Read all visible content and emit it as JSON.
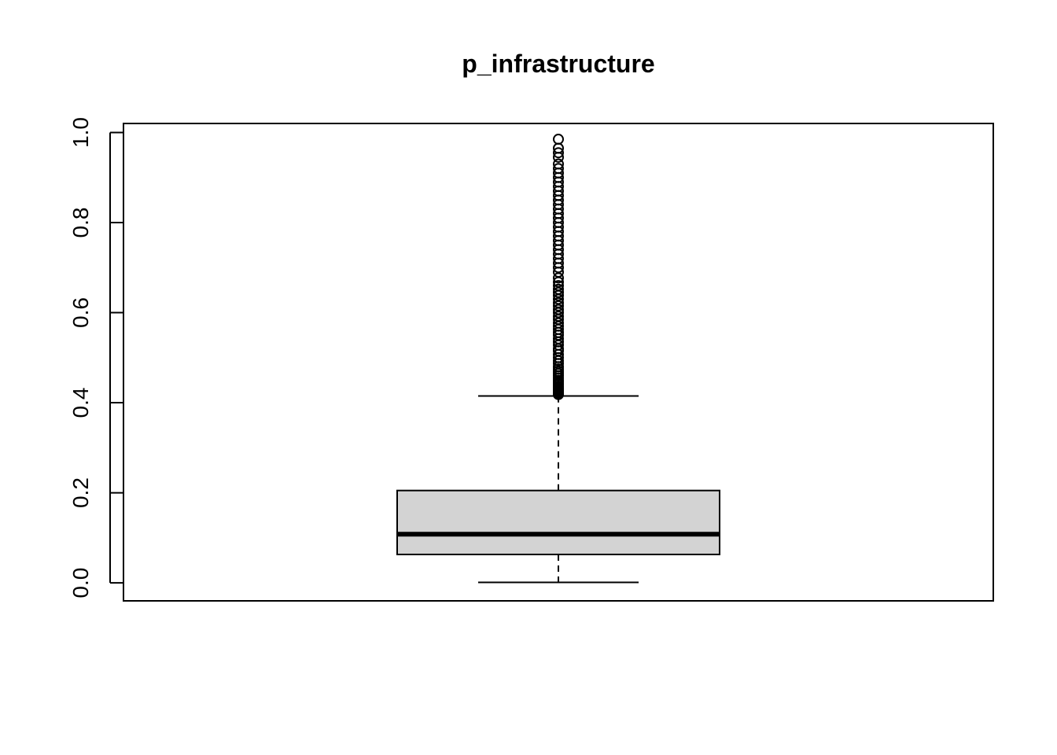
{
  "chart_data": {
    "type": "box",
    "title": "p_infrastructure",
    "xlabel": "",
    "ylabel": "",
    "ylim": [
      -0.04,
      1.02
    ],
    "yticks": [
      0.0,
      0.2,
      0.4,
      0.6,
      0.8,
      1.0
    ],
    "ytick_labels": [
      "0.0",
      "0.2",
      "0.4",
      "0.6",
      "0.8",
      "1.0"
    ],
    "grid": false,
    "box": {
      "whisker_low": 0.001,
      "q1": 0.063,
      "median": 0.108,
      "q3": 0.205,
      "whisker_high": 0.415
    },
    "outliers": [
      0.418,
      0.42,
      0.422,
      0.425,
      0.428,
      0.43,
      0.433,
      0.436,
      0.44,
      0.443,
      0.447,
      0.45,
      0.455,
      0.46,
      0.465,
      0.47,
      0.475,
      0.48,
      0.487,
      0.493,
      0.5,
      0.507,
      0.515,
      0.52,
      0.528,
      0.535,
      0.542,
      0.55,
      0.556,
      0.563,
      0.57,
      0.577,
      0.585,
      0.592,
      0.6,
      0.607,
      0.615,
      0.622,
      0.63,
      0.638,
      0.645,
      0.652,
      0.66,
      0.668,
      0.677,
      0.69,
      0.7,
      0.71,
      0.72,
      0.73,
      0.74,
      0.75,
      0.76,
      0.77,
      0.78,
      0.79,
      0.8,
      0.81,
      0.82,
      0.83,
      0.84,
      0.85,
      0.86,
      0.87,
      0.88,
      0.89,
      0.9,
      0.91,
      0.92,
      0.93,
      0.945,
      0.955,
      0.965,
      0.985
    ],
    "colors": {
      "box_fill": "#d3d3d3",
      "line": "#000000",
      "background": "#ffffff"
    }
  }
}
